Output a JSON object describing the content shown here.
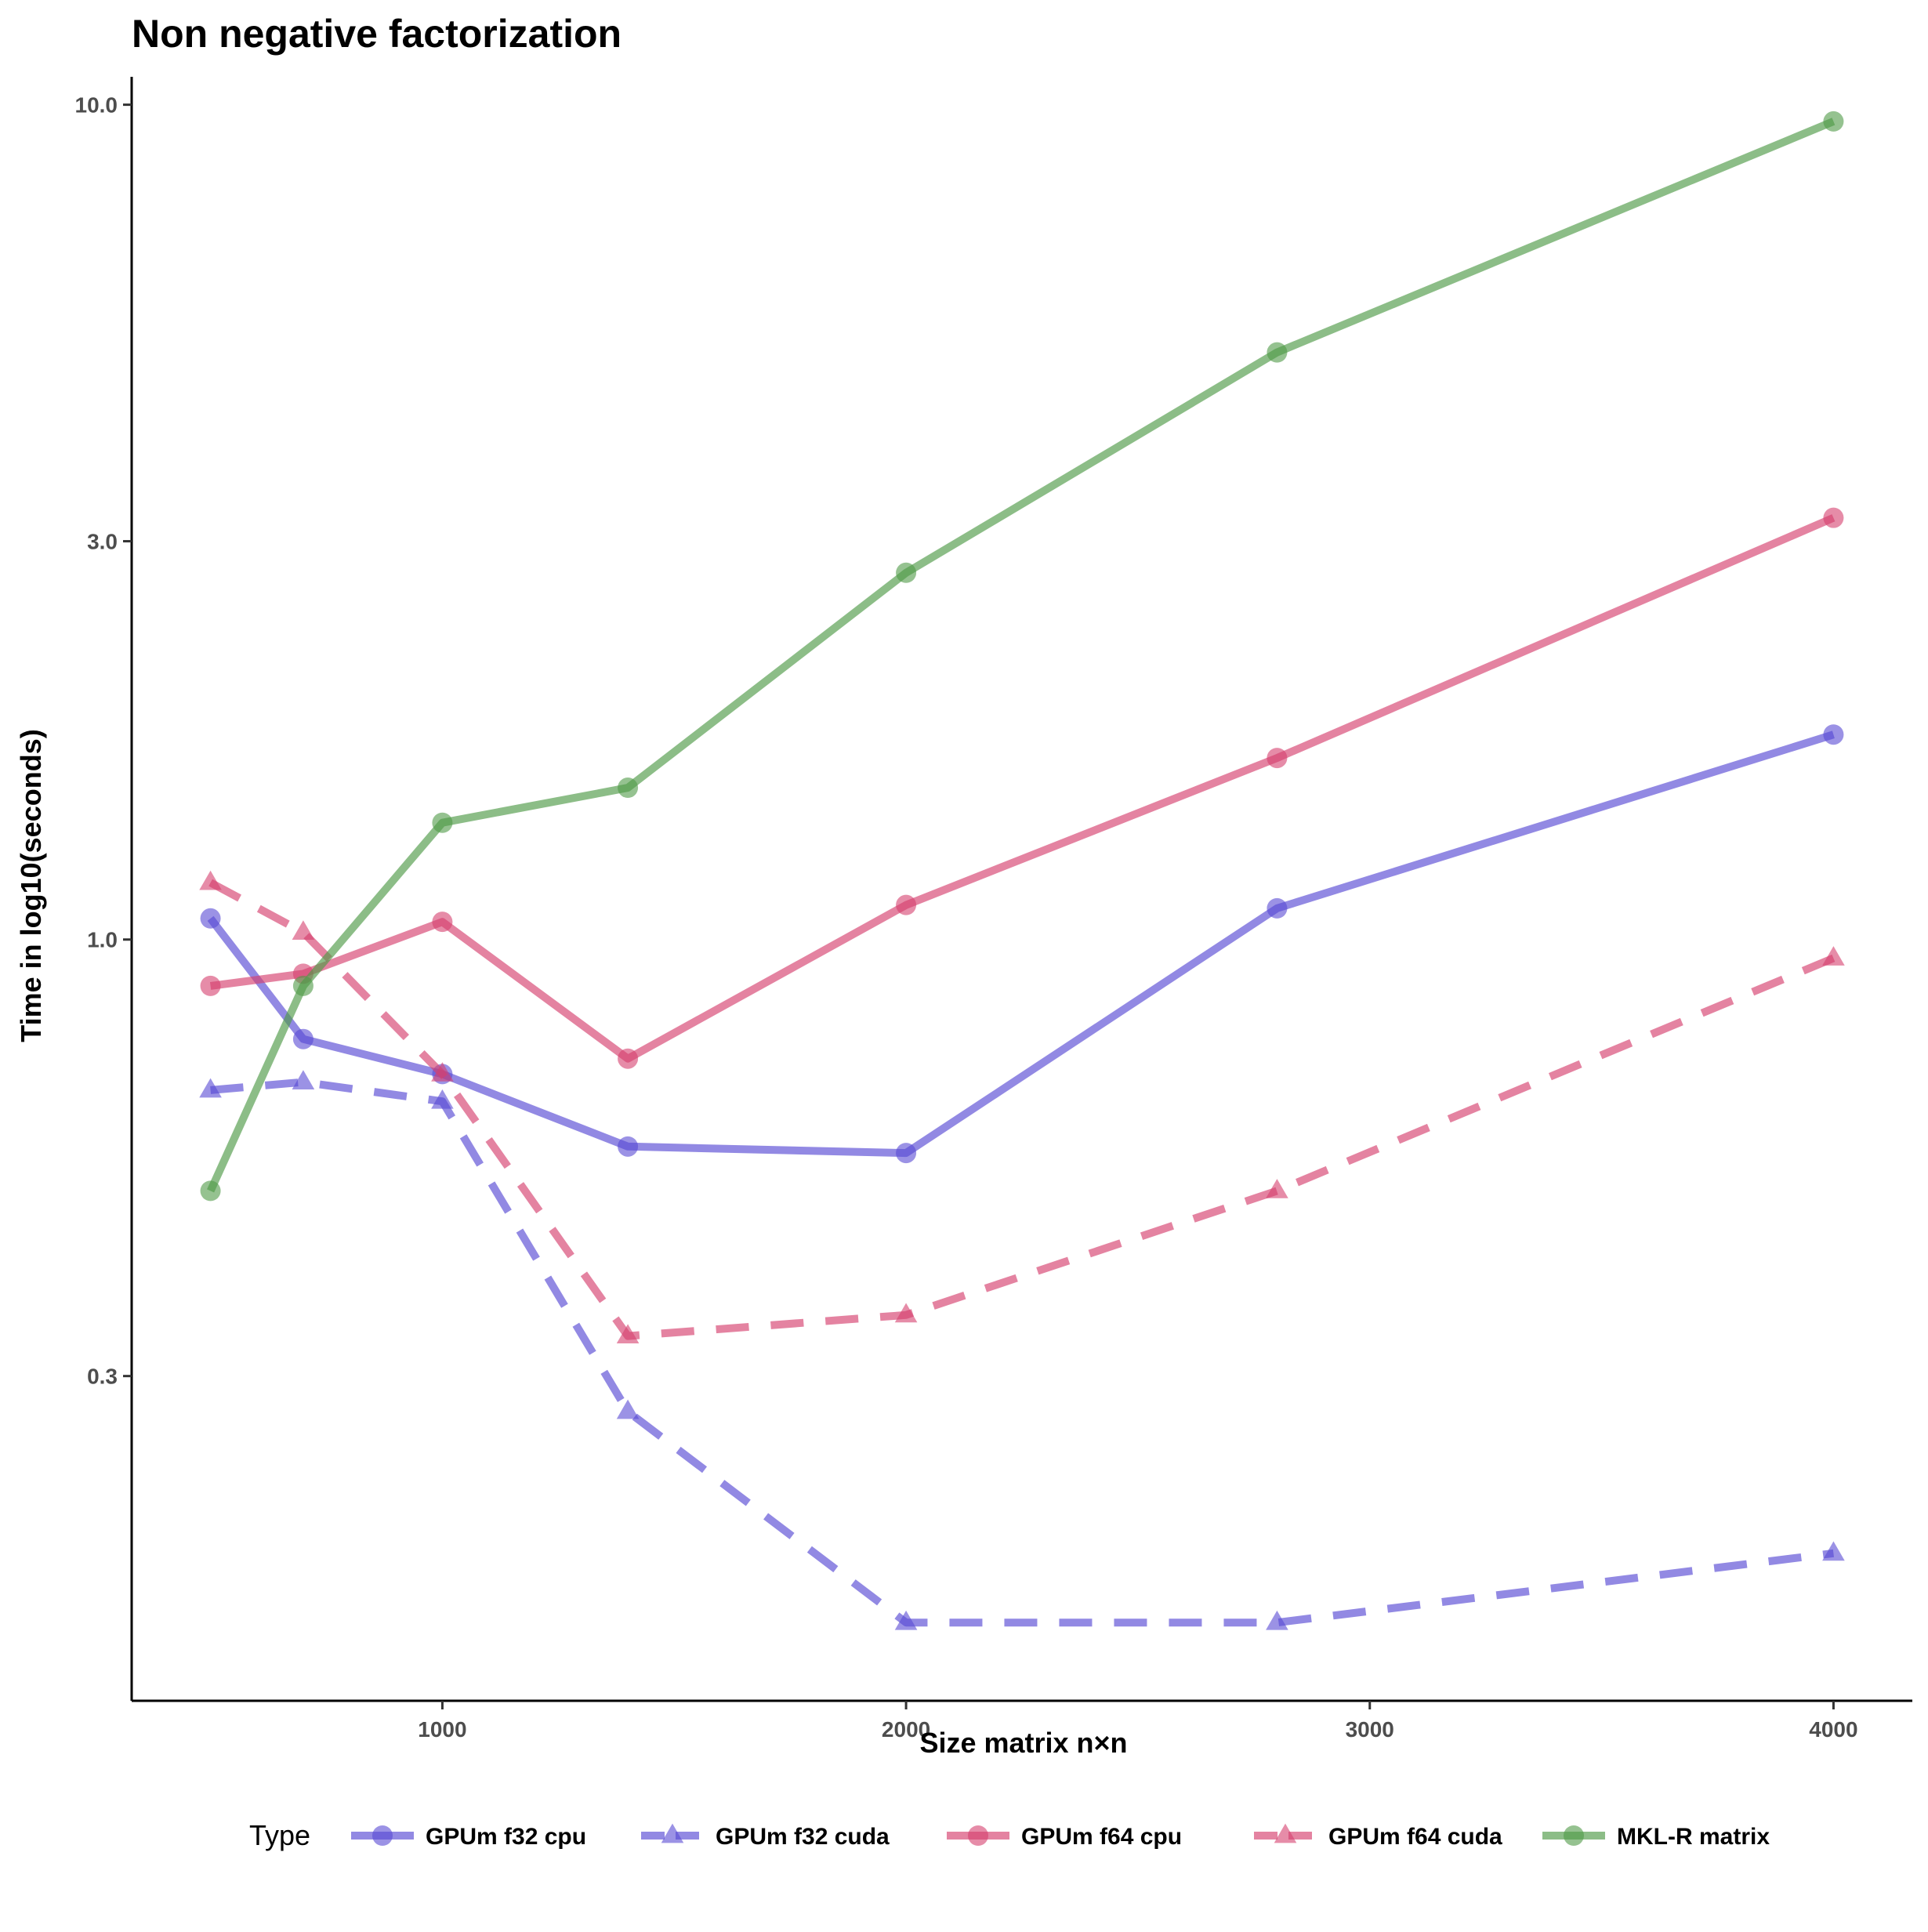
{
  "chart_data": {
    "type": "line",
    "title": "Non negative factorization",
    "xlabel": "Size matrix n×n",
    "ylabel": "Time in log10(seconds)",
    "y_scale": "log10",
    "xlim": [
      330,
      4170
    ],
    "ylim": [
      0.1225,
      10.8
    ],
    "x_ticks": [
      1000,
      2000,
      3000,
      4000
    ],
    "x_tick_labels": [
      "1000",
      "2000",
      "3000",
      "4000"
    ],
    "y_ticks": [
      0.3,
      1.0,
      3.0,
      10.0
    ],
    "y_tick_labels": [
      "0.3",
      "1.0",
      "3.0",
      "10.0"
    ],
    "grid": false,
    "legend": {
      "title": "Type",
      "position": "bottom",
      "orientation": "horizontal"
    },
    "x": [
      500,
      700,
      1000,
      1400,
      2000,
      2800,
      4000
    ],
    "series": [
      {
        "name": "GPUm f32 cpu",
        "values": [
          1.06,
          0.76,
          0.69,
          0.565,
          0.555,
          1.09,
          1.76
        ],
        "color": "#5849d4",
        "shape": "circle",
        "line": "solid"
      },
      {
        "name": "GPUm f32 cuda",
        "values": [
          0.66,
          0.675,
          0.64,
          0.272,
          0.152,
          0.152,
          0.184
        ],
        "color": "#5849d4",
        "shape": "triangle",
        "line": "dashed"
      },
      {
        "name": "GPUm f64 cpu",
        "values": [
          0.88,
          0.91,
          1.05,
          0.72,
          1.1,
          1.65,
          3.2
        ],
        "color": "#d6406e",
        "shape": "circle",
        "line": "solid"
      },
      {
        "name": "GPUm f64 cuda",
        "values": [
          1.17,
          1.02,
          0.69,
          0.335,
          0.355,
          0.5,
          0.95
        ],
        "color": "#d6406e",
        "shape": "triangle",
        "line": "dashed"
      },
      {
        "name": "MKL-R matrix",
        "values": [
          0.5,
          0.88,
          1.38,
          1.52,
          2.75,
          5.05,
          9.55
        ],
        "color": "#4e9a46",
        "shape": "circle",
        "line": "solid"
      }
    ]
  }
}
